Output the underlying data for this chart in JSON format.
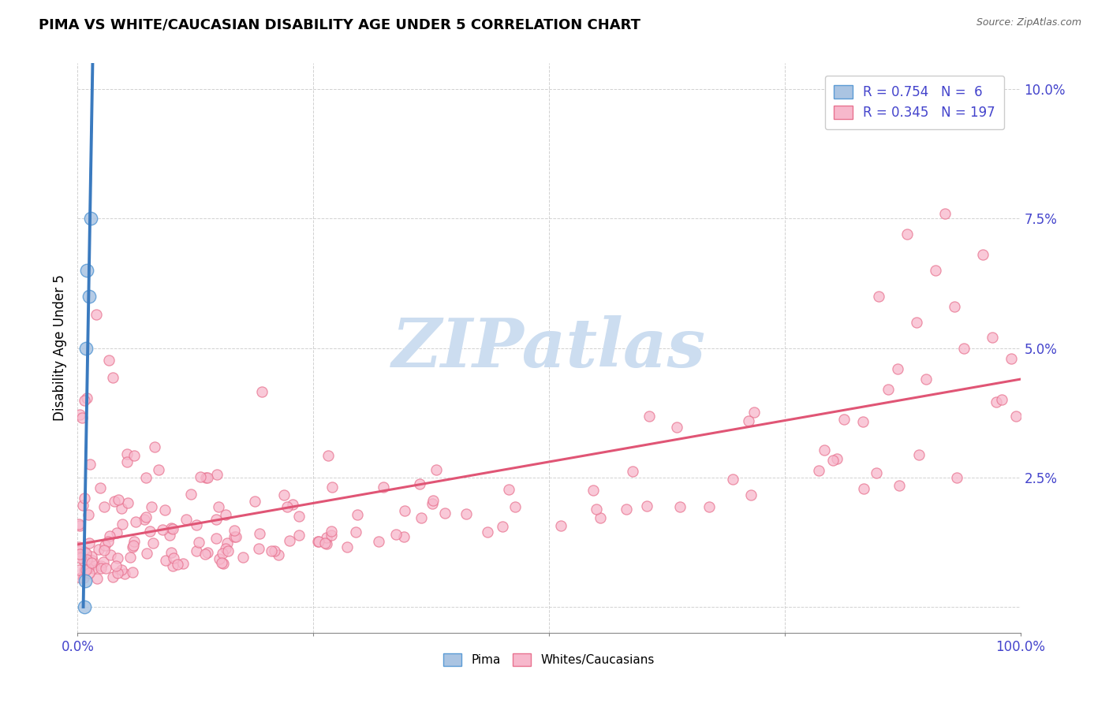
{
  "title": "PIMA VS WHITE/CAUCASIAN DISABILITY AGE UNDER 5 CORRELATION CHART",
  "source": "Source: ZipAtlas.com",
  "ylabel": "Disability Age Under 5",
  "xlim": [
    0.0,
    1.0
  ],
  "ylim": [
    -0.005,
    0.105
  ],
  "pima_color": "#aac4e2",
  "pima_edge_color": "#5b9bd5",
  "pink_color": "#f7b8cc",
  "pink_edge_color": "#e8728f",
  "blue_line_color": "#3a7abf",
  "pink_line_color": "#e05575",
  "legend_R1": "0.754",
  "legend_N1": "6",
  "legend_R2": "0.345",
  "legend_N2": "197",
  "watermark": "ZIPatlas",
  "watermark_color": "#ccddf0",
  "background_color": "#ffffff",
  "grid_color": "#cccccc",
  "label_color": "#4444cc",
  "pima_seed": 42,
  "whites_seed": 99
}
